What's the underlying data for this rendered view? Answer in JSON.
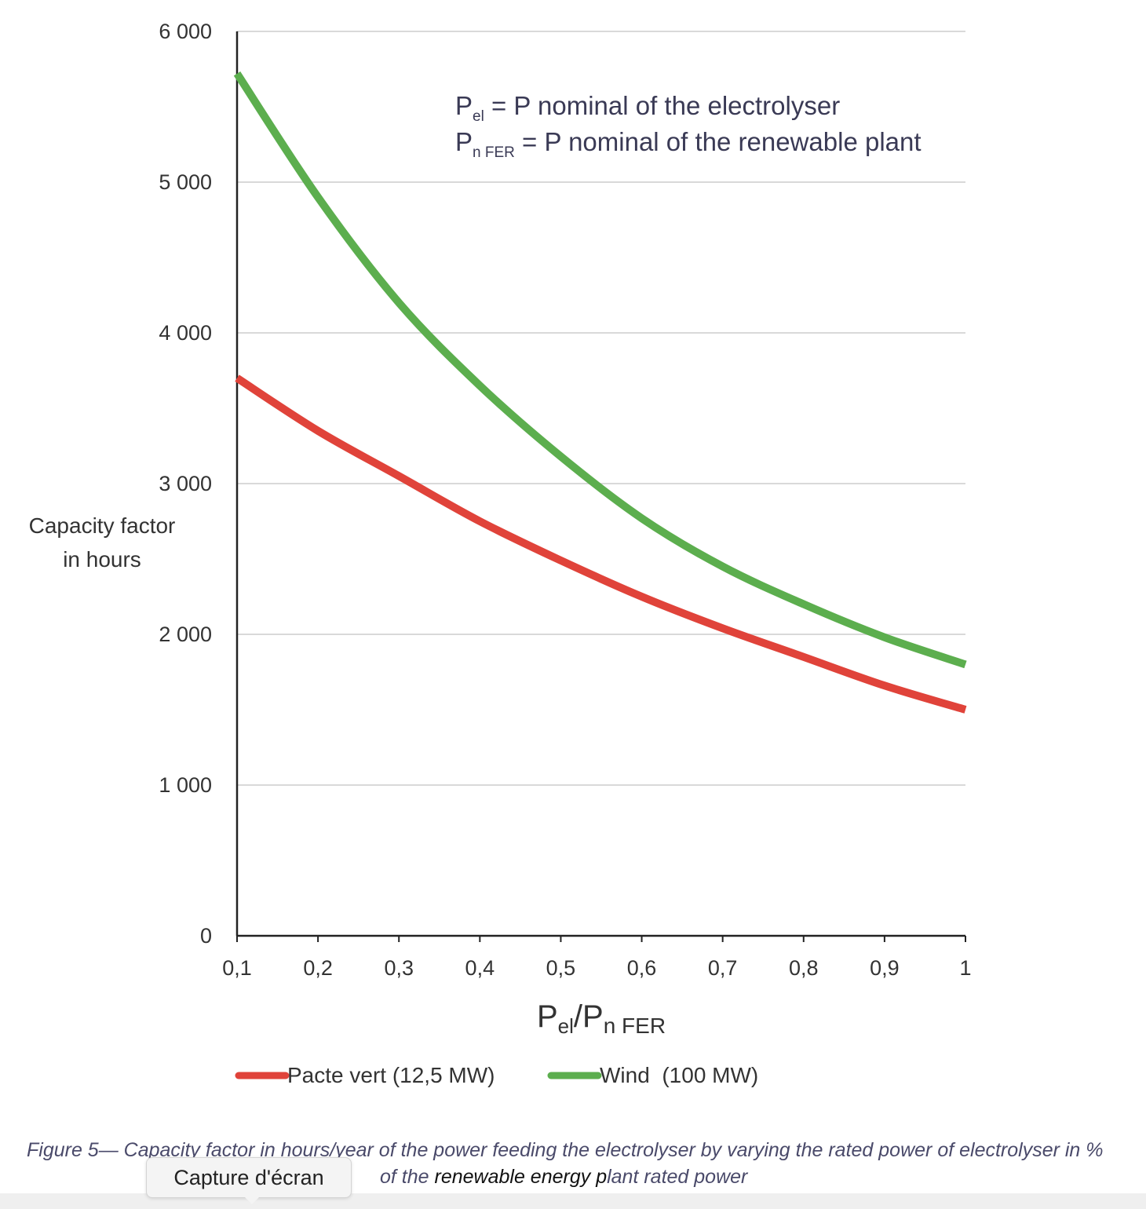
{
  "chart_data": {
    "type": "line",
    "x": [
      0.1,
      0.2,
      0.3,
      0.4,
      0.5,
      0.6,
      0.7,
      0.8,
      0.9,
      1.0
    ],
    "xticks": [
      "0,1",
      "0,2",
      "0,3",
      "0,4",
      "0,5",
      "0,6",
      "0,7",
      "0,8",
      "0,9",
      "1"
    ],
    "yticks": [
      "0",
      "1 000",
      "2 000",
      "3 000",
      "4 000",
      "5 000",
      "6 000"
    ],
    "ytick_values": [
      0,
      1000,
      2000,
      3000,
      4000,
      5000,
      6000
    ],
    "xlim": [
      0.1,
      1.0
    ],
    "ylim": [
      0,
      6000
    ],
    "grid": "horizontal",
    "legend_position": "bottom",
    "ylabel_line1": "Capacity factor",
    "ylabel_line2": "in hours",
    "xlabel": {
      "main": "P",
      "sub1": "el",
      "sep": "/P",
      "sub2": "n FER"
    },
    "annotation": {
      "line1": {
        "p": "P",
        "sub": "el",
        "text": " = P nominal of the electrolyser"
      },
      "line2": {
        "p": "P",
        "sub": "n FER",
        "text": " = P nominal of the renewable plant"
      }
    },
    "series": [
      {
        "name": "Pacte vert (12,5 MW)",
        "color": "#e0433a",
        "values": [
          3700,
          3350,
          3050,
          2750,
          2490,
          2250,
          2040,
          1850,
          1660,
          1500
        ]
      },
      {
        "name": "Wind  (100 MW)",
        "color": "#5cae4e",
        "values": [
          5720,
          4900,
          4200,
          3650,
          3180,
          2770,
          2450,
          2200,
          1980,
          1800
        ]
      }
    ]
  },
  "caption": {
    "line1": "Figure 5— Capacity factor in hours/year of the power feeding the electrolyser by varying the rated power of electrolyser in %",
    "line2_pre": "of the ",
    "line2_bold": "renewable energy p",
    "line2_post": "lant rated power"
  },
  "tooltip": {
    "label": "Capture d'écran"
  }
}
